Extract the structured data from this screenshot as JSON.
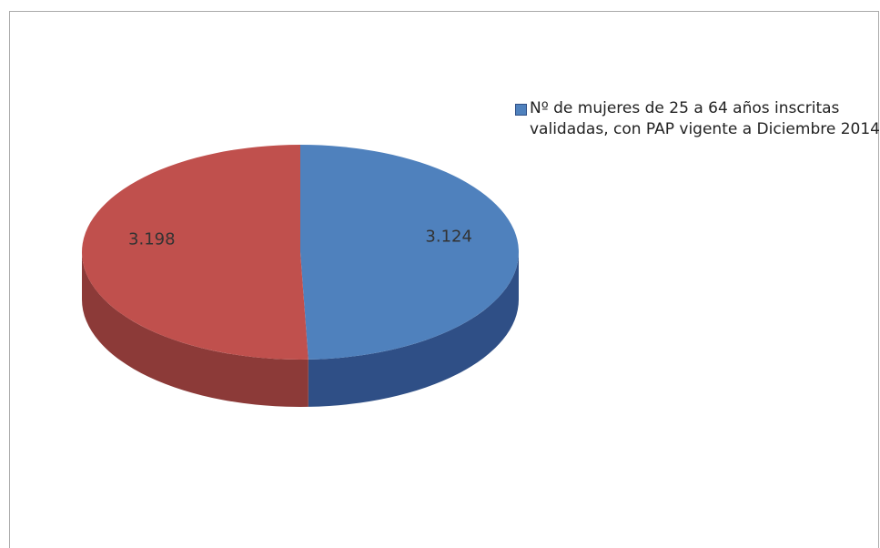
{
  "chart_data": {
    "type": "pie",
    "categories": [
      "Nº de mujeres de 25 a 64 años inscritas validadas, con PAP vigente a Diciembre 2014",
      null
    ],
    "values": [
      3124,
      3198
    ],
    "value_labels": [
      "3.124",
      "3.198"
    ],
    "colors": [
      "#4f81bd",
      "#c0504d"
    ],
    "side_colors": [
      "#2f4f86",
      "#8c3a38"
    ]
  }
}
